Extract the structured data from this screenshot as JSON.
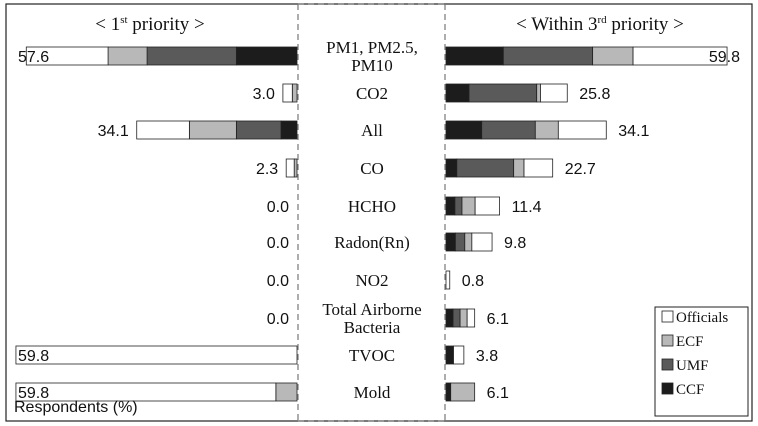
{
  "chart_data": {
    "type": "bar",
    "layout": "diverging-horizontal-stacked",
    "left_panel": {
      "title_main": "< 1",
      "title_sup": "st",
      "title_rest": " priority >",
      "values": [
        57.6,
        3.0,
        34.1,
        2.3,
        0.0,
        0.0,
        0.0,
        0.0,
        59.8,
        59.8
      ],
      "value_labels": [
        "57.6",
        "3.0",
        "34.1",
        "2.3",
        "0.0",
        "0.0",
        "0.0",
        "0.0",
        "59.8",
        "59.8"
      ]
    },
    "right_panel": {
      "title_main": "< Within 3",
      "title_sup": "rd",
      "title_rest": " priority >",
      "values": [
        59.8,
        25.8,
        34.1,
        22.7,
        11.4,
        9.8,
        0.8,
        6.1,
        3.8,
        6.1
      ],
      "value_labels": [
        "59.8",
        "25.8",
        "34.1",
        "22.7",
        "11.4",
        "9.8",
        "0.8",
        "6.1",
        "3.8",
        "6.1"
      ]
    },
    "categories": [
      [
        "PM1, PM2.5,",
        "PM10"
      ],
      [
        "CO2"
      ],
      [
        "All"
      ],
      [
        "CO"
      ],
      [
        "HCHO"
      ],
      [
        "Radon(Rn)"
      ],
      [
        "NO2"
      ],
      [
        "Total Airborne",
        "Bacteria"
      ],
      [
        "TVOC"
      ],
      [
        "Mold"
      ]
    ],
    "series": [
      {
        "name": "CCF",
        "color": "#1c1c1c",
        "left": [
          12.9,
          0,
          3.4,
          0,
          0,
          0,
          0,
          0,
          0,
          0
        ],
        "right": [
          12.2,
          4.9,
          7.6,
          2.3,
          1.9,
          2.0,
          0,
          1.5,
          1.6,
          1.0
        ]
      },
      {
        "name": "UMF",
        "color": "#5a5a5a",
        "left": [
          19.0,
          0,
          9.5,
          0,
          0,
          0,
          0,
          0,
          0,
          0
        ],
        "right": [
          19.0,
          14.4,
          11.4,
          12.1,
          1.5,
          2.0,
          0,
          1.5,
          0,
          0
        ]
      },
      {
        "name": "ECF",
        "color": "#b8b8b8",
        "left": [
          8.3,
          1.0,
          10.0,
          0.6,
          0,
          0,
          0,
          0,
          0,
          4.5
        ],
        "right": [
          8.6,
          0.8,
          4.9,
          2.2,
          2.8,
          1.5,
          0,
          1.5,
          0,
          5.1
        ]
      },
      {
        "name": "Officials",
        "color": "#ffffff",
        "left": [
          17.4,
          2.0,
          11.2,
          1.7,
          0,
          0,
          0,
          0,
          59.8,
          55.3
        ],
        "right": [
          20.0,
          5.7,
          10.2,
          6.1,
          5.2,
          4.3,
          0.8,
          1.6,
          2.2,
          0
        ]
      }
    ],
    "legend": {
      "position": "bottom-right",
      "order": [
        "Officials",
        "ECF",
        "UMF",
        "CCF"
      ]
    },
    "xlabel": "Respondents (%)",
    "xlim": [
      0,
      60
    ]
  }
}
